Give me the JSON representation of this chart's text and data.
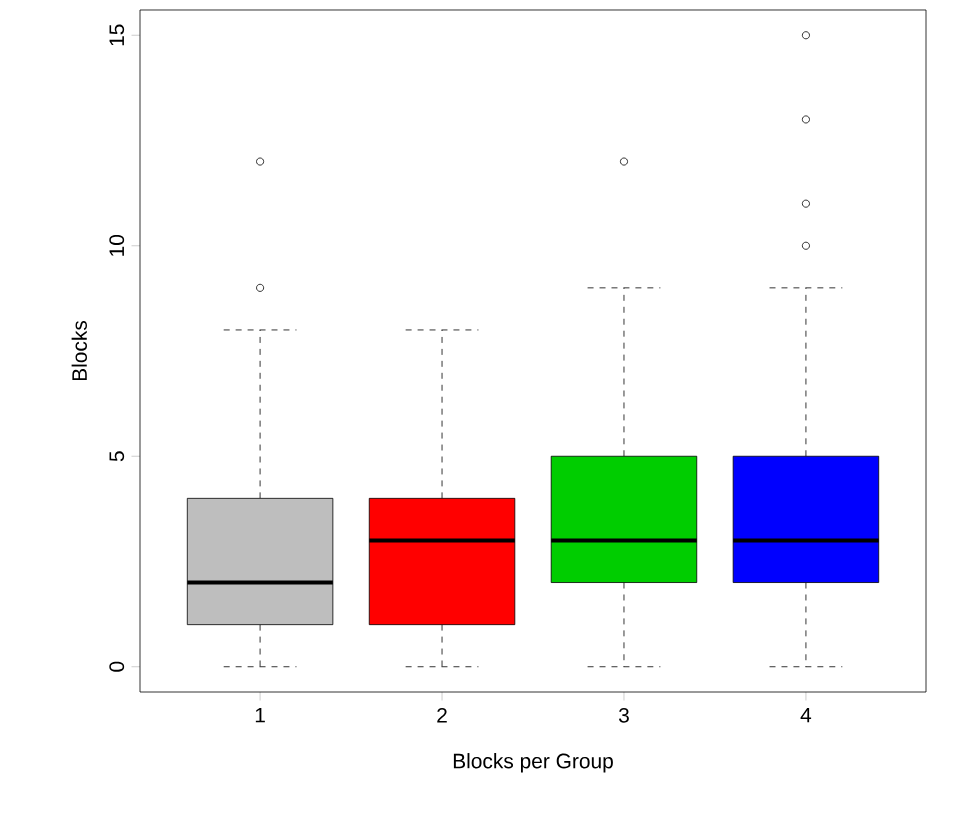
{
  "chart_data": {
    "type": "box",
    "xlabel": "Blocks per Group",
    "ylabel": "Blocks",
    "categories": [
      "1",
      "2",
      "3",
      "4"
    ],
    "colors": [
      "#bebebe",
      "#ff0000",
      "#00cd00",
      "#0000ff"
    ],
    "boxes": [
      {
        "low": 0,
        "q1": 1,
        "median": 2,
        "q3": 4,
        "high": 8,
        "outliers": [
          9,
          12
        ]
      },
      {
        "low": 0,
        "q1": 1,
        "median": 3,
        "q3": 4,
        "high": 8
      },
      {
        "low": 0,
        "q1": 2,
        "median": 3,
        "q3": 5,
        "high": 9,
        "outliers": [
          12
        ]
      },
      {
        "low": 0,
        "q1": 2,
        "median": 3,
        "q3": 5,
        "high": 9,
        "outliers": [
          10,
          11,
          13,
          15
        ]
      }
    ],
    "ylim": [
      -0.6,
      15.6
    ],
    "yticks": [
      0,
      5,
      10,
      15
    ],
    "grid": false,
    "marker": "circle"
  }
}
